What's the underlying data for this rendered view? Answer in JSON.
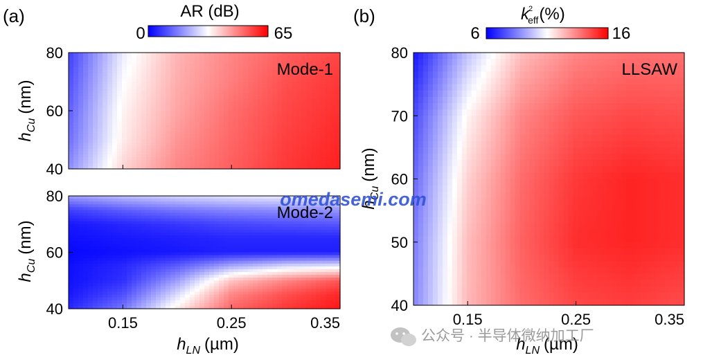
{
  "panels": {
    "a": {
      "letter": "(a)"
    },
    "b": {
      "letter": "(b)"
    }
  },
  "colorbars": {
    "a": {
      "label": "AR (dB)",
      "min_label": "0",
      "max_label": "65",
      "min": 0,
      "max": 65,
      "colors": [
        "#0000ff",
        "#ffffff",
        "#ff0000"
      ]
    },
    "b": {
      "label_main": "k",
      "label_sup": "2",
      "label_sub": "eff",
      "label_unit": "(%)",
      "min_label": "6",
      "max_label": "16",
      "min": 6,
      "max": 16,
      "colors": [
        "#0000ff",
        "#ffffff",
        "#ff0000"
      ]
    }
  },
  "axes": {
    "x_label_main": "h",
    "x_label_sub": "LN",
    "x_label_unit": "(µm)",
    "y_label_main": "h",
    "y_label_sub": "Cu",
    "y_label_unit": "(nm)",
    "x_tick_labels": [
      "0.15",
      "0.25",
      "0.35"
    ]
  },
  "watermark": {
    "site": "omedasemi.com",
    "wechat": "公众号 · 半导体微纳加工厂"
  },
  "chart_data": [
    {
      "type": "heatmap",
      "panel": "(a)",
      "name": "Mode-1",
      "xlabel": "hLN (µm)",
      "ylabel": "hCu (nm)",
      "xlim": [
        0.1,
        0.35
      ],
      "ylim": [
        40,
        80
      ],
      "x": [
        0.1,
        0.15,
        0.2,
        0.25,
        0.3,
        0.35
      ],
      "y": [
        40,
        50,
        60,
        70,
        80
      ],
      "z_rows_bottom_to_top": [
        [
          18,
          38,
          48,
          53,
          58,
          61
        ],
        [
          14,
          35,
          46,
          52,
          57,
          60
        ],
        [
          12,
          34,
          44,
          51,
          56,
          59
        ],
        [
          10,
          32,
          43,
          49,
          55,
          58
        ],
        [
          8,
          30,
          42,
          48,
          53,
          56
        ]
      ],
      "zlim": [
        0,
        65
      ],
      "colorbar_label": "AR (dB)",
      "y_ticks": [
        40,
        60,
        80
      ],
      "x_ticks": []
    },
    {
      "type": "heatmap",
      "panel": "(a)",
      "name": "Mode-2",
      "xlabel": "hLN (µm)",
      "ylabel": "hCu (nm)",
      "xlim": [
        0.1,
        0.35
      ],
      "ylim": [
        40,
        80
      ],
      "x": [
        0.1,
        0.15,
        0.2,
        0.25,
        0.3,
        0.35
      ],
      "y": [
        40,
        45,
        50,
        55,
        60,
        65,
        70,
        75,
        80
      ],
      "z_rows_bottom_to_top": [
        [
          5,
          15,
          35,
          52,
          58,
          62
        ],
        [
          3,
          10,
          28,
          48,
          55,
          60
        ],
        [
          2,
          6,
          20,
          40,
          48,
          54
        ],
        [
          2,
          5,
          12,
          22,
          28,
          30
        ],
        [
          1,
          2,
          3,
          4,
          4,
          4
        ],
        [
          2,
          3,
          4,
          5,
          5,
          5
        ],
        [
          3,
          5,
          7,
          9,
          10,
          11
        ],
        [
          8,
          12,
          15,
          17,
          18,
          19
        ],
        [
          20,
          24,
          27,
          29,
          30,
          31
        ]
      ],
      "zlim": [
        0,
        65
      ],
      "colorbar_label": "AR (dB)",
      "y_ticks": [
        40,
        60,
        80
      ],
      "x_ticks": [
        0.15,
        0.25,
        0.35
      ]
    },
    {
      "type": "heatmap",
      "panel": "(b)",
      "name": "LLSAW",
      "xlabel": "hLN (µm)",
      "ylabel": "hCu (nm)",
      "xlim": [
        0.1,
        0.35
      ],
      "ylim": [
        40,
        80
      ],
      "x": [
        0.1,
        0.15,
        0.2,
        0.25,
        0.3,
        0.35
      ],
      "y": [
        40,
        50,
        60,
        70,
        80
      ],
      "z_rows_bottom_to_top": [
        [
          8.6,
          12.4,
          13.9,
          14.6,
          14.8,
          14.5
        ],
        [
          8.4,
          12.3,
          14.1,
          15.1,
          15.3,
          15.1
        ],
        [
          8.0,
          11.9,
          13.9,
          14.9,
          15.3,
          15.1
        ],
        [
          7.4,
          11.2,
          13.4,
          14.3,
          14.6,
          14.5
        ],
        [
          6.4,
          9.8,
          12.3,
          13.4,
          13.8,
          13.8
        ]
      ],
      "zlim": [
        6,
        16
      ],
      "colorbar_label": "k_eff^2 (%)",
      "y_ticks": [
        40,
        50,
        60,
        70,
        80
      ],
      "x_ticks": [
        0.15,
        0.25,
        0.35
      ]
    }
  ]
}
